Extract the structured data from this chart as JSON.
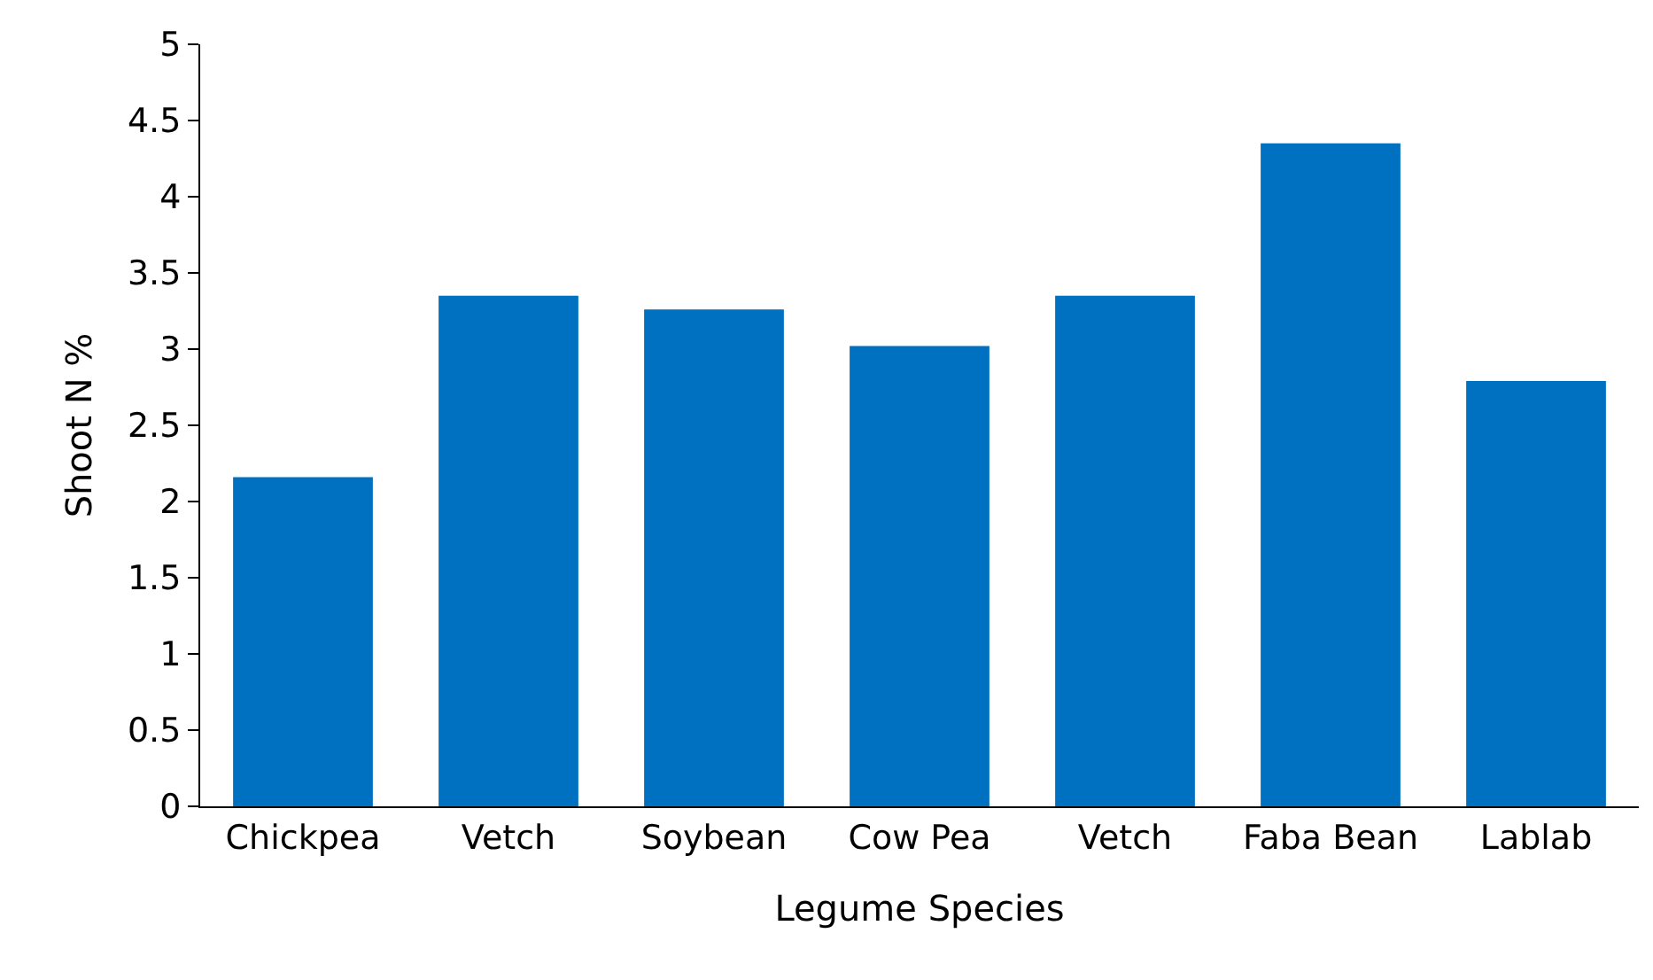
{
  "chart_data": {
    "type": "bar",
    "xlabel": "Legume Species",
    "ylabel": "Shoot N %",
    "categories": [
      "Chickpea",
      "Vetch",
      "Soybean",
      "Cow Pea",
      "Vetch",
      "Faba Bean",
      "Lablab"
    ],
    "values": [
      2.16,
      3.35,
      3.26,
      3.02,
      3.35,
      4.35,
      2.79
    ],
    "color": "#0070c0",
    "ylim": [
      0,
      5
    ],
    "yticks": [
      0,
      0.5,
      1,
      1.5,
      2,
      2.5,
      3,
      3.5,
      4,
      4.5,
      5
    ]
  }
}
